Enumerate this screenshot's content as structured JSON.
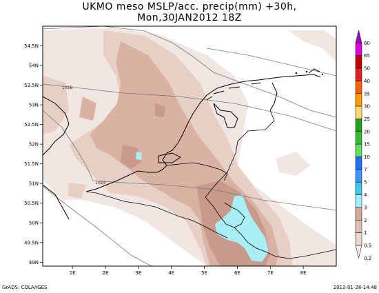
{
  "title": {
    "line1": "UKMO meso MSLP/acc. precip(mm) +30h,",
    "line2": "Mon,30JAN2012 18Z"
  },
  "axes": {
    "lat_labels": [
      "54.5N",
      "54N",
      "53.5N",
      "53N",
      "52.5N",
      "52N",
      "51.5N",
      "51N",
      "50.5N",
      "50N",
      "49.5N",
      "49N"
    ],
    "lat_values": [
      54.5,
      54,
      53.5,
      53,
      52.5,
      52,
      51.5,
      51,
      50.5,
      50,
      49.5,
      49
    ],
    "lon_labels": [
      "1E",
      "2E",
      "3E",
      "4E",
      "5E",
      "6E",
      "7E",
      "8E"
    ],
    "lon_values": [
      1,
      2,
      3,
      4,
      5,
      6,
      7,
      8
    ],
    "lat_range": [
      48.9,
      55.0
    ],
    "lon_range": [
      0.1,
      9.0
    ]
  },
  "isobars": [
    {
      "label": "1028"
    },
    {
      "label": "1024"
    }
  ],
  "colorbar": {
    "labels": [
      "80",
      "65",
      "50",
      "40",
      "35",
      "30",
      "25",
      "20",
      "15",
      "10",
      "7",
      "5",
      "4",
      "3",
      "2",
      "1",
      "0.5",
      "0.2"
    ],
    "colors": [
      "#a000c8",
      "#dd00dd",
      "#c00000",
      "#e02020",
      "#ff6000",
      "#ff9900",
      "#ffd870",
      "#20a020",
      "#30c030",
      "#60e060",
      "#2070ff",
      "#3c96ff",
      "#3cc8f0",
      "#a0f0ff",
      "#d6a89a",
      "#dcc0b4",
      "#e8d8d0",
      "#f4ece8"
    ]
  },
  "footer": {
    "left": "GrADS: COLA/IGES",
    "right": "2012-01-28-14:48"
  }
}
